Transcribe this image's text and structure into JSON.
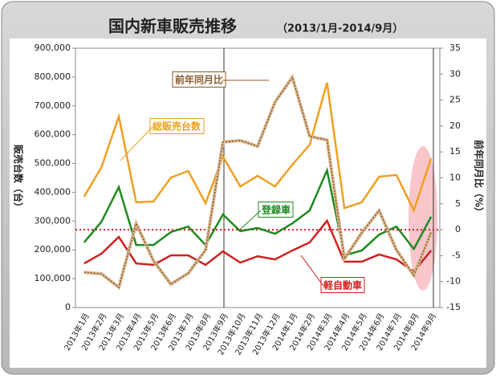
{
  "chart_data": {
    "type": "line",
    "title": "国内新車販売推移",
    "subtitle": "（2013/1月-2014/9月）",
    "y_label": "販売台数（台）",
    "y2_label": "前年同月比（%）",
    "categories": [
      "2013年1月",
      "2013年2月",
      "2013年3月",
      "2013年4月",
      "2013年5月",
      "2013年6月",
      "2013年7月",
      "2013年8月",
      "2013年9月",
      "2013年10月",
      "2013年11月",
      "2013年12月",
      "2014年1月",
      "2014年2月",
      "2014年3月",
      "2014年4月",
      "2014年5月",
      "2014年6月",
      "2014年7月",
      "2014年8月",
      "2014年9月"
    ],
    "ylim": [
      0,
      900000
    ],
    "yticks": [
      0,
      {
        "value": 100000,
        "label": "100,000"
      },
      {
        "value": 200000,
        "label": "200,000"
      },
      {
        "value": 300000,
        "label": "300,000"
      },
      {
        "value": 400000,
        "label": "400,000"
      },
      {
        "value": 500000,
        "label": "500,000"
      },
      {
        "value": 600000,
        "label": "600,000"
      },
      {
        "value": 700000,
        "label": "700,000"
      },
      {
        "value": 800000,
        "label": "800,000"
      },
      {
        "value": 900000,
        "label": "900,000"
      }
    ],
    "y2lim": [
      -15,
      35
    ],
    "y2ticks": [
      -15,
      -10,
      -5,
      0,
      5,
      10,
      15,
      20,
      25,
      30,
      35
    ],
    "series": [
      {
        "name": "総販売台数",
        "color": "#f0a020",
        "values": [
          385000,
          487000,
          663000,
          365000,
          368000,
          451000,
          474000,
          362000,
          524000,
          420000,
          457000,
          420000,
          496000,
          565000,
          780000,
          345000,
          365000,
          454000,
          460000,
          337000,
          518000
        ]
      },
      {
        "name": "登録車",
        "color": "#1e8a1e",
        "values": [
          226000,
          298000,
          418000,
          217000,
          217000,
          262000,
          281000,
          217000,
          323000,
          265000,
          276000,
          256000,
          292000,
          337000,
          476000,
          181000,
          198000,
          253000,
          281000,
          203000,
          315000
        ]
      },
      {
        "name": "軽自動車",
        "color": "#d02020",
        "values": [
          153000,
          187000,
          245000,
          153000,
          148000,
          181000,
          181000,
          148000,
          195000,
          156000,
          178000,
          167000,
          198000,
          226000,
          301000,
          159000,
          159000,
          184000,
          167000,
          125000,
          198000
        ]
      },
      {
        "name": "前年同月比",
        "color": "#8b5a2b",
        "axis": "y2",
        "values": [
          -8.2,
          -8.5,
          -11.1,
          1.2,
          -6.0,
          -10.5,
          -8.4,
          -3.9,
          16.9,
          17.2,
          16.1,
          24.6,
          29.4,
          18.0,
          17.3,
          -5.6,
          -0.6,
          3.7,
          -3.9,
          -8.8,
          -0.5
        ]
      }
    ]
  }
}
